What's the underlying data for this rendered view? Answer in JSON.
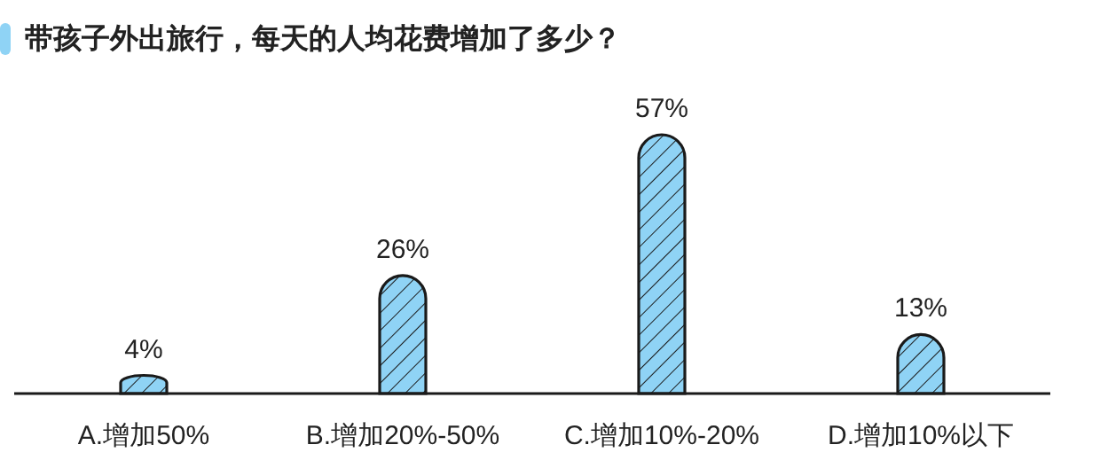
{
  "chart_data": {
    "type": "bar",
    "title": "带孩子外出旅行，每天的人均花费增加了多少？",
    "categories": [
      "A.增加50%",
      "B.增加20%-50%",
      "C.增加10%-20%",
      "D.增加10%以下"
    ],
    "values": [
      4,
      26,
      57,
      13
    ],
    "value_labels": [
      "4%",
      "26%",
      "57%",
      "13%"
    ],
    "color": "#8fd3f5"
  }
}
